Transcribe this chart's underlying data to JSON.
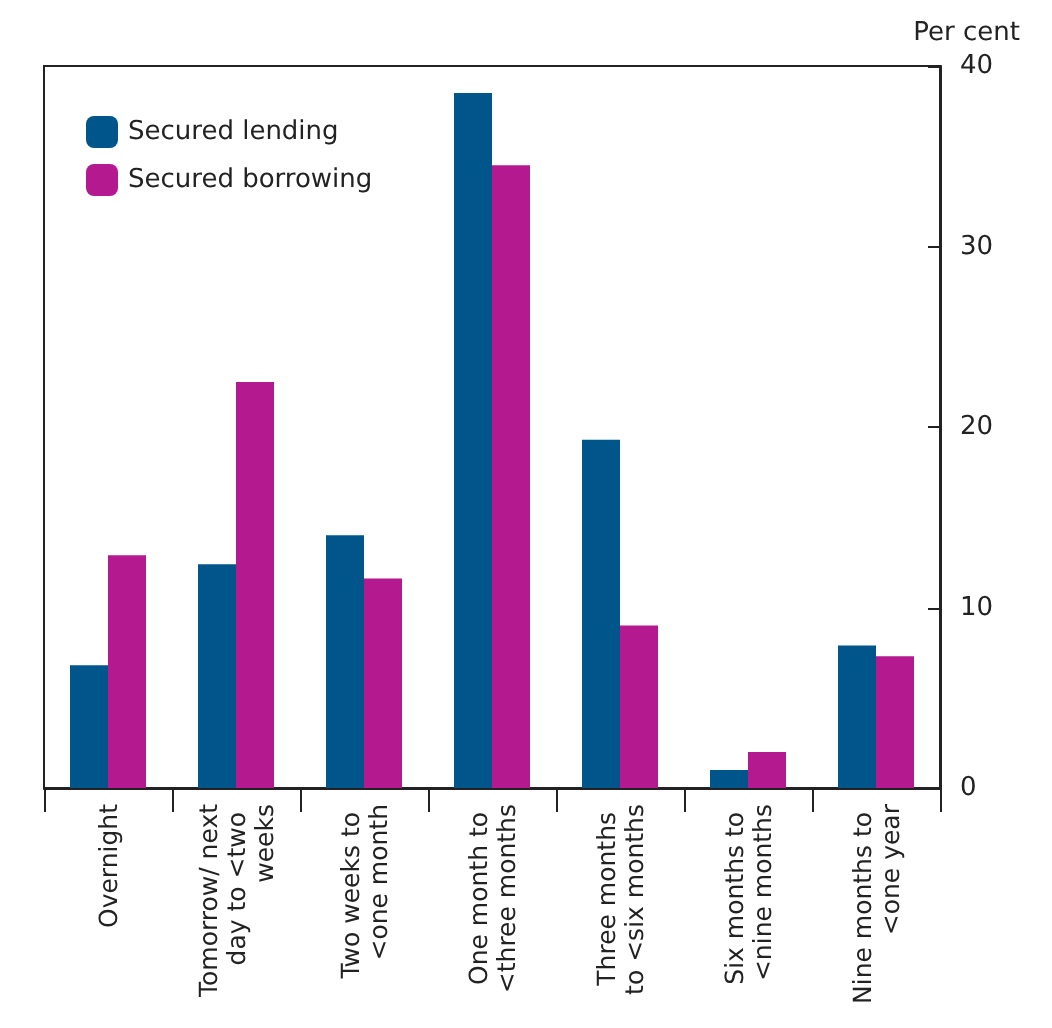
{
  "chart_data": {
    "type": "bar",
    "ylabel": "Per cent",
    "categories": [
      "Overnight",
      "Tomorrow/ next day to <two weeks",
      "Two weeks to <one month",
      "One month to <three months",
      "Three months to <six months",
      "Six months to <nine months",
      "Nine months to <one year"
    ],
    "series": [
      {
        "name": "Secured lending",
        "color": "#00558b",
        "values": [
          6.8,
          12.4,
          14.0,
          38.5,
          19.3,
          1.0,
          7.9
        ]
      },
      {
        "name": "Secured borrowing",
        "color": "#b5198f",
        "values": [
          12.9,
          22.5,
          11.6,
          34.5,
          9.0,
          2.0,
          7.3
        ]
      }
    ],
    "ylim": [
      0,
      40
    ],
    "yticks": [
      0,
      10,
      20,
      30,
      40
    ],
    "grid": false,
    "legend": "top left"
  }
}
